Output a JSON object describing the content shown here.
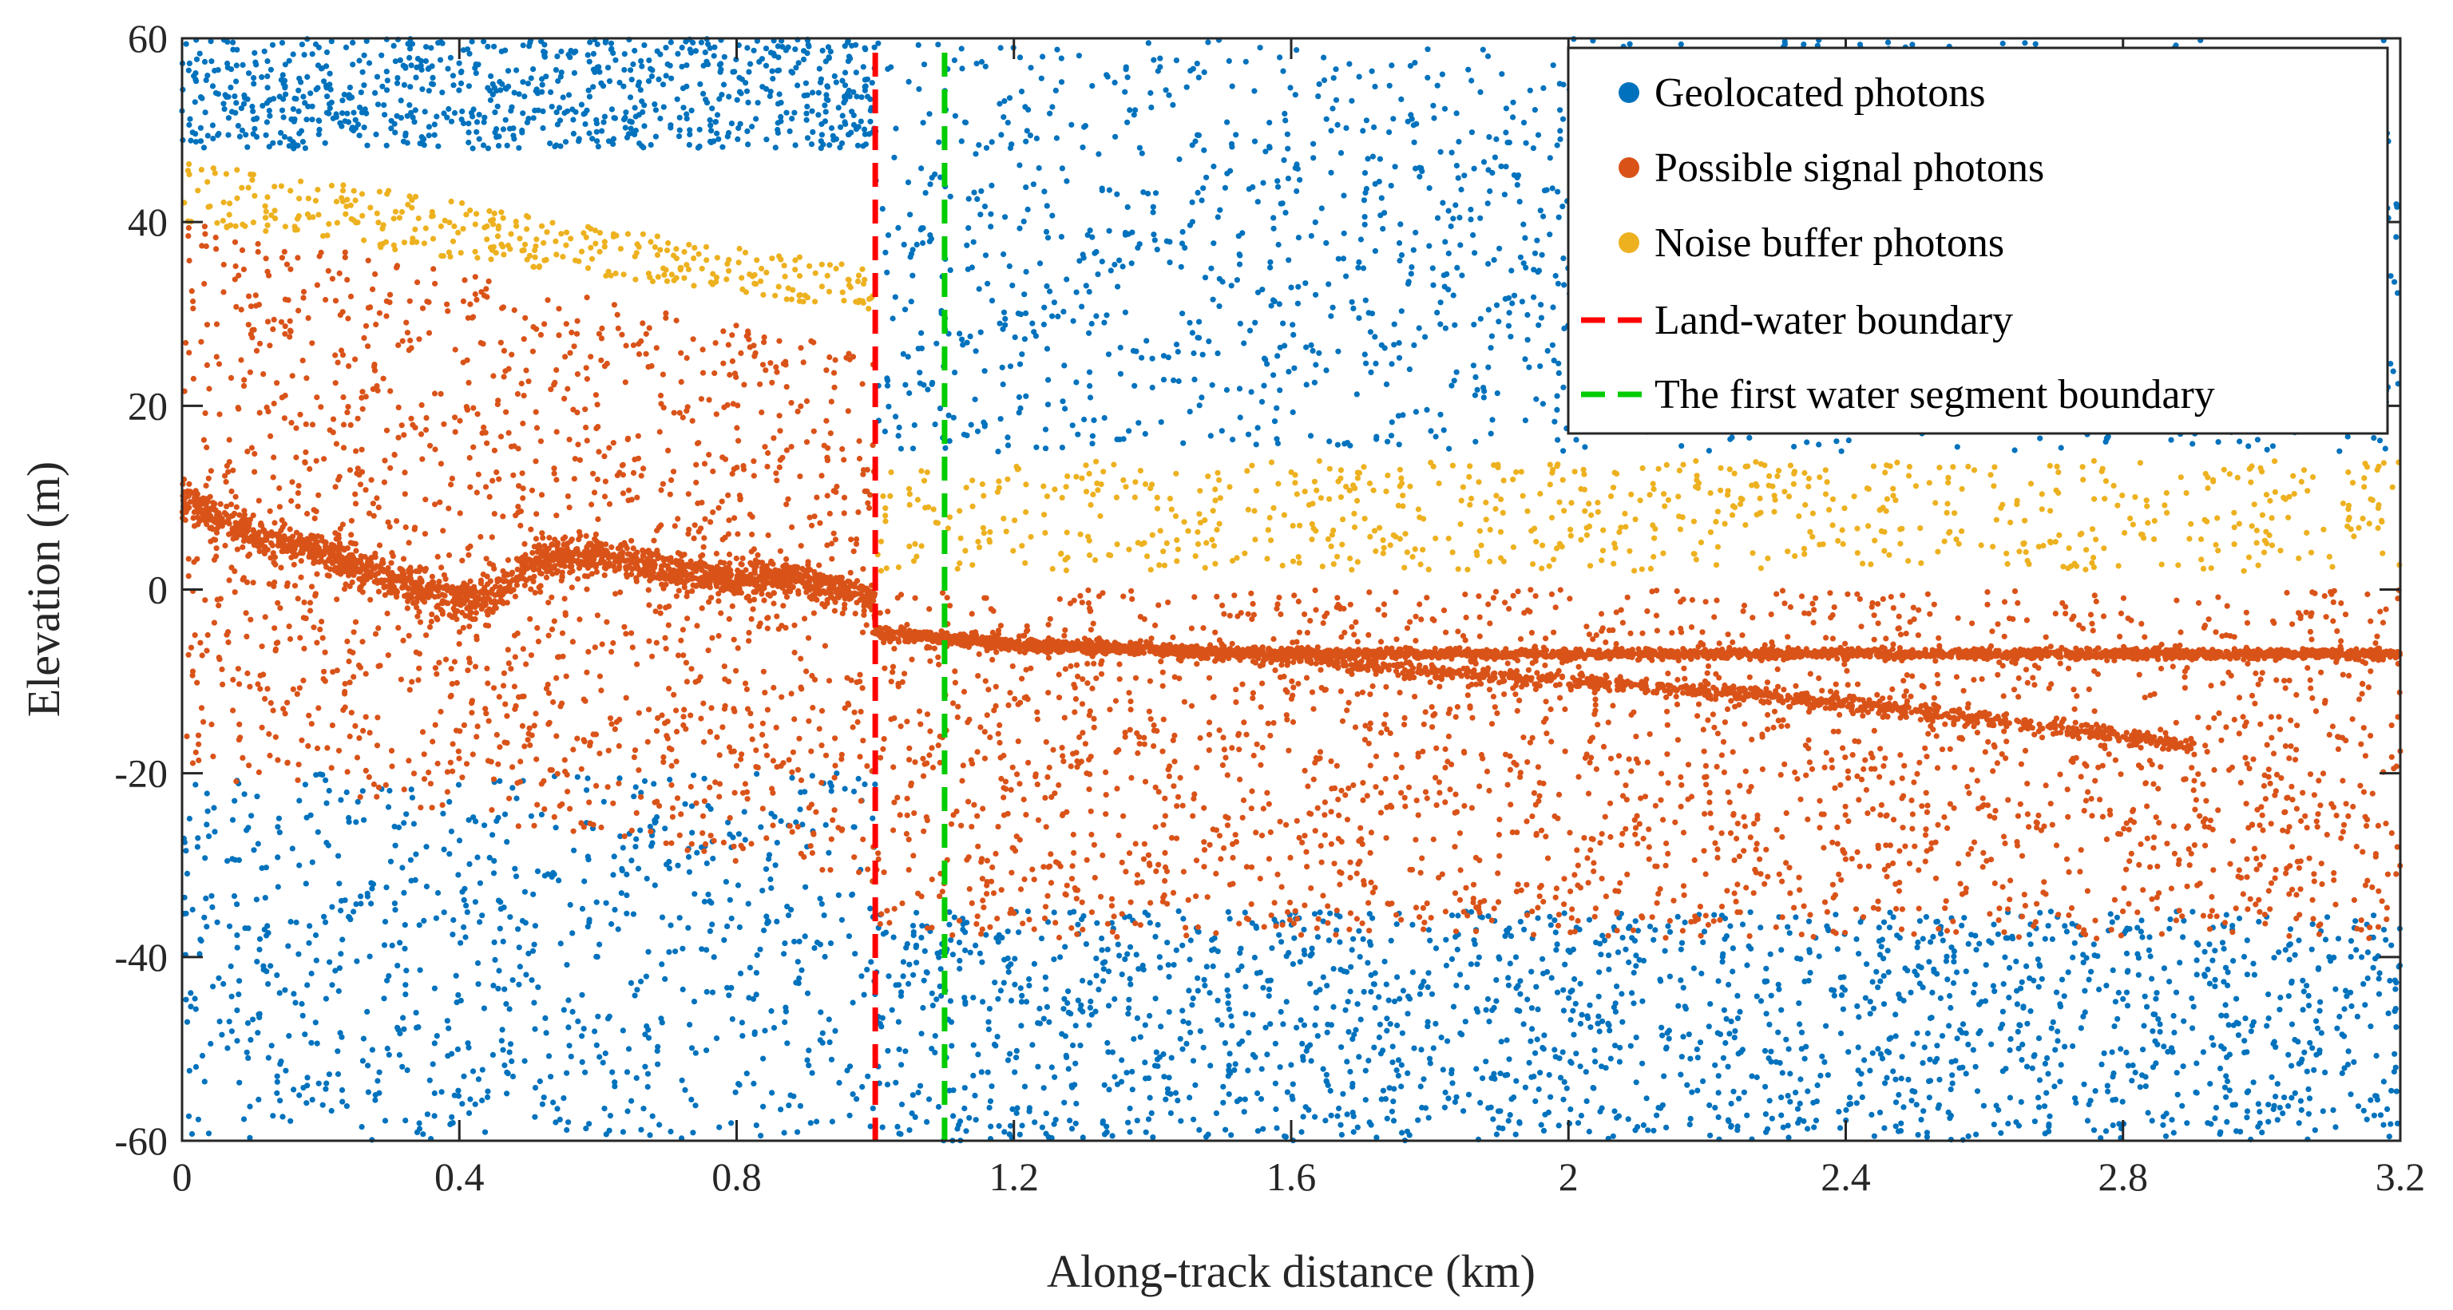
{
  "chart_data": {
    "type": "scatter",
    "title": "",
    "xlabel": "Along-track distance (km)",
    "ylabel": "Elevation (m)",
    "xlim": [
      0,
      3.2
    ],
    "ylim": [
      -60,
      60
    ],
    "xticks": [
      0,
      0.4,
      0.8,
      1.2,
      1.6,
      2,
      2.4,
      2.8,
      3.2
    ],
    "xtick_labels": [
      "0",
      "0.4",
      "0.8",
      "1.2",
      "1.6",
      "2",
      "2.4",
      "2.8",
      "3.2"
    ],
    "yticks": [
      60,
      40,
      20,
      0,
      -20,
      -40,
      -60
    ],
    "ytick_labels": [
      "60",
      "40",
      "20",
      "0",
      "-20",
      "-40",
      "-60"
    ],
    "grid": false,
    "legend_position": "top-right",
    "series": [
      {
        "name": "Geolocated photons",
        "kind": "points",
        "color": "#0072BD",
        "description_ranges": {
          "upper_region": {
            "x": [
              0,
              3.2
            ],
            "y": [
              15,
              60
            ],
            "land_part_y_min": 48
          },
          "lower_region": {
            "x": [
              0,
              3.2
            ],
            "y": [
              -60,
              -35
            ],
            "land_part_y_max": -20
          }
        }
      },
      {
        "name": "Possible signal photons",
        "kind": "points",
        "color": "#D95319",
        "land_surface_profile": {
          "x": [
            0,
            0.1,
            0.2,
            0.3,
            0.4,
            0.45,
            0.5,
            0.6,
            0.7,
            0.8,
            0.9,
            1.0
          ],
          "y": [
            10,
            6,
            4,
            1,
            -1,
            -1,
            3,
            4,
            2,
            1,
            1,
            -1
          ]
        },
        "water_surface_profile": {
          "x": [
            1.0,
            1.2,
            1.6,
            2.0,
            2.4,
            2.8,
            3.2
          ],
          "y": [
            -4.5,
            -6,
            -7,
            -7,
            -7,
            -7,
            -7
          ]
        },
        "bottom_profile": {
          "x": [
            1.0,
            1.6,
            1.8,
            2.0,
            2.2,
            2.4,
            2.6,
            2.8,
            2.9
          ],
          "y": [
            -5,
            -7.5,
            -9,
            -10,
            -11,
            -12.5,
            -14,
            -16,
            -17
          ]
        },
        "scatter_band_land": {
          "x": [
            0,
            1.0
          ],
          "y": [
            -30,
            40
          ]
        },
        "scatter_band_water": {
          "x": [
            1.0,
            3.2
          ],
          "y": [
            -38,
            0
          ]
        }
      },
      {
        "name": "Noise buffer photons",
        "kind": "points",
        "color": "#EDB120",
        "land_band": {
          "x": [
            0,
            1.0
          ],
          "y_top": [
            47,
            35
          ],
          "y_bottom": [
            40,
            30
          ]
        },
        "water_band": {
          "x": [
            1.0,
            3.2
          ],
          "y": [
            2,
            14
          ]
        }
      },
      {
        "name": "Land-water boundary",
        "kind": "vline",
        "color": "#FF0000",
        "x": 1.0
      },
      {
        "name": "The first water segment boundary",
        "kind": "vline",
        "color": "#00CC00",
        "x": 1.1
      }
    ]
  }
}
